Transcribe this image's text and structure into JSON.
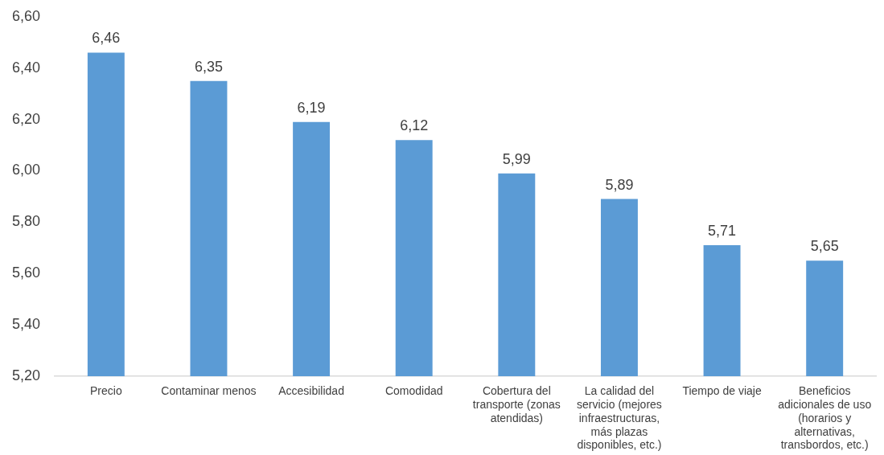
{
  "chart_data": {
    "type": "bar",
    "categories": [
      "Precio",
      "Contaminar menos",
      "Accesibilidad",
      "Comodidad",
      "Cobertura del transporte (zonas atendidas)",
      "La calidad del servicio (mejores infraestructuras, más plazas disponibles, etc.)",
      "Tiempo de viaje",
      "Beneficios adicionales de uso (horarios y alternativas, transbordos, etc.)"
    ],
    "values": [
      6.46,
      6.35,
      6.19,
      6.12,
      5.99,
      5.89,
      5.71,
      5.65
    ],
    "value_labels": [
      "6,46",
      "6,35",
      "6,19",
      "6,12",
      "5,99",
      "5,89",
      "5,71",
      "5,65"
    ],
    "color": "#5b9bd5",
    "ylim": [
      5.2,
      6.6
    ],
    "yticks": [
      {
        "value": 5.2,
        "label": "5,20"
      },
      {
        "value": 5.4,
        "label": "5,40"
      },
      {
        "value": 5.6,
        "label": "5,60"
      },
      {
        "value": 5.8,
        "label": "5,80"
      },
      {
        "value": 6.0,
        "label": "6,00"
      },
      {
        "value": 6.2,
        "label": "6,20"
      },
      {
        "value": 6.4,
        "label": "6,40"
      },
      {
        "value": 6.6,
        "label": "6,60"
      }
    ],
    "grid": false
  }
}
